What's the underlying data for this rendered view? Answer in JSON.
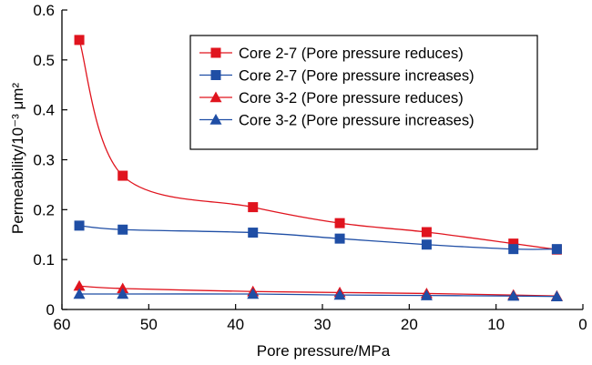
{
  "chart_data": {
    "type": "line",
    "xlabel": "Pore pressure/MPa",
    "ylabel": "Permeability/10⁻³ μm²",
    "xlim": [
      60,
      0
    ],
    "ylim": [
      0,
      0.6
    ],
    "xticks": [
      "60",
      "50",
      "40",
      "30",
      "20",
      "10",
      "0"
    ],
    "yticks": [
      "0",
      "0.1",
      "0.2",
      "0.3",
      "0.4",
      "0.5",
      "0.6"
    ],
    "legend_position": "top-right",
    "grid": false,
    "series": [
      {
        "name": "Core 2-7 (Pore pressure reduces)",
        "color": "#e0141e",
        "marker": "square",
        "x": [
          58,
          53,
          38,
          28,
          18,
          8,
          3
        ],
        "y": [
          0.54,
          0.268,
          0.205,
          0.173,
          0.155,
          0.132,
          0.12
        ]
      },
      {
        "name": "Core 2-7 (Pore pressure increases)",
        "color": "#1f4ea5",
        "marker": "square",
        "x": [
          58,
          53,
          38,
          28,
          18,
          8,
          3
        ],
        "y": [
          0.168,
          0.16,
          0.154,
          0.142,
          0.13,
          0.121,
          0.121
        ]
      },
      {
        "name": "Core 3-2 (Pore pressure reduces)",
        "color": "#e0141e",
        "marker": "triangle",
        "x": [
          58,
          53,
          38,
          28,
          18,
          8,
          3
        ],
        "y": [
          0.047,
          0.042,
          0.036,
          0.034,
          0.032,
          0.029,
          0.027
        ]
      },
      {
        "name": "Core 3-2 (Pore pressure increases)",
        "color": "#1f4ea5",
        "marker": "triangle",
        "x": [
          58,
          53,
          38,
          28,
          18,
          8,
          3
        ],
        "y": [
          0.031,
          0.031,
          0.031,
          0.029,
          0.028,
          0.027,
          0.026
        ]
      }
    ]
  }
}
